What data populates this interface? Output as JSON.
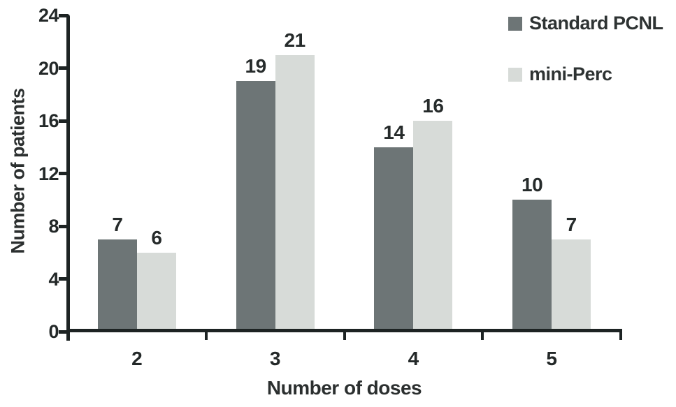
{
  "chart_data": {
    "type": "bar",
    "title": "",
    "xlabel": "Number of doses",
    "ylabel": "Number of patients",
    "categories": [
      "2",
      "3",
      "4",
      "5"
    ],
    "series": [
      {
        "name": "Standard PCNL",
        "color": "#6d7576",
        "values": [
          7,
          19,
          14,
          10
        ]
      },
      {
        "name": "mini-Perc",
        "color": "#d7dbd8",
        "values": [
          6,
          21,
          16,
          7
        ]
      }
    ],
    "ylim": [
      0,
      24
    ],
    "yticks": [
      0,
      4,
      8,
      12,
      16,
      20,
      24
    ],
    "grid": false,
    "legend_position": "top-right",
    "axis_color": "#1d2323",
    "label_color": "#262b2b"
  }
}
